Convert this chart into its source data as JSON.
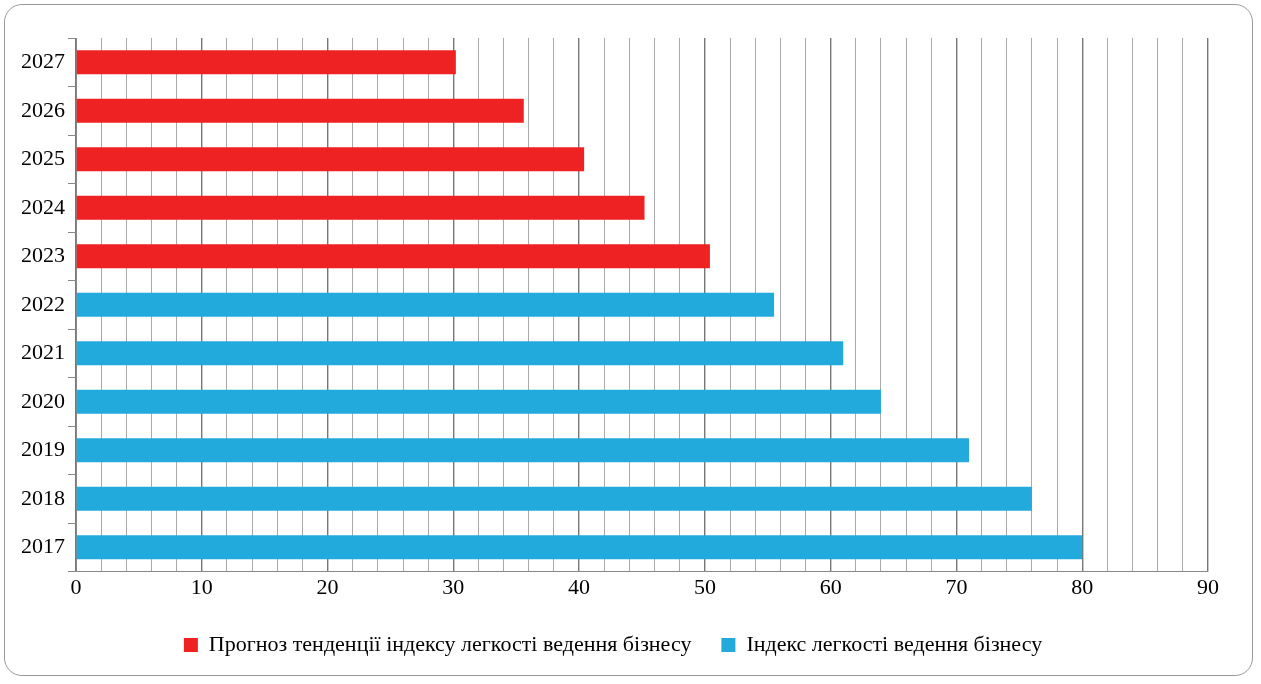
{
  "chart_data": {
    "type": "bar",
    "orientation": "horizontal",
    "stacked": true,
    "categories": [
      "2027",
      "2026",
      "2025",
      "2024",
      "2023",
      "2022",
      "2021",
      "2020",
      "2019",
      "2018",
      "2017"
    ],
    "series": [
      {
        "name": "Прогноз тенденції індексу легкості ведення бізнесу",
        "color": "#ee2222",
        "values": [
          30.2,
          35.6,
          40.4,
          45.2,
          50.4,
          null,
          null,
          null,
          null,
          null,
          null
        ]
      },
      {
        "name": "Індекс легкості ведення бізнесу",
        "color": "#22aadd",
        "values": [
          null,
          null,
          null,
          null,
          null,
          55.5,
          61,
          64,
          71,
          76,
          80
        ]
      }
    ],
    "xlim": [
      0,
      90
    ],
    "xticks": [
      0,
      {
        "value": 2,
        "label": null
      },
      {
        "value": 4,
        "label": null
      },
      {
        "value": 6,
        "label": null
      },
      {
        "value": 8,
        "label": null
      },
      10,
      {
        "value": 12,
        "label": null
      },
      {
        "value": 14,
        "label": null
      },
      {
        "value": 16,
        "label": null
      },
      {
        "value": 18,
        "label": null
      },
      20,
      {
        "value": 22,
        "label": null
      },
      {
        "value": 24,
        "label": null
      },
      {
        "value": 26,
        "label": null
      },
      {
        "value": 28,
        "label": null
      },
      30,
      {
        "value": 32,
        "label": null
      },
      {
        "value": 34,
        "label": null
      },
      {
        "value": 36,
        "label": null
      },
      {
        "value": 38,
        "label": null
      },
      40,
      {
        "value": 42,
        "label": null
      },
      {
        "value": 44,
        "label": null
      },
      {
        "value": 46,
        "label": null
      },
      {
        "value": 48,
        "label": null
      },
      50,
      {
        "value": 52,
        "label": null
      },
      {
        "value": 54,
        "label": null
      },
      {
        "value": 56,
        "label": null
      },
      {
        "value": 58,
        "label": null
      },
      60,
      {
        "value": 62,
        "label": null
      },
      {
        "value": 64,
        "label": null
      },
      {
        "value": 66,
        "label": null
      },
      {
        "value": 68,
        "label": null
      },
      70,
      {
        "value": 72,
        "label": null
      },
      {
        "value": 74,
        "label": null
      },
      {
        "value": 76,
        "label": null
      },
      {
        "value": 78,
        "label": null
      },
      80,
      {
        "value": 82,
        "label": null
      },
      {
        "value": 84,
        "label": null
      },
      {
        "value": 86,
        "label": null
      },
      {
        "value": 88,
        "label": null
      },
      90
    ],
    "grid": "x",
    "legend": "bottom"
  }
}
